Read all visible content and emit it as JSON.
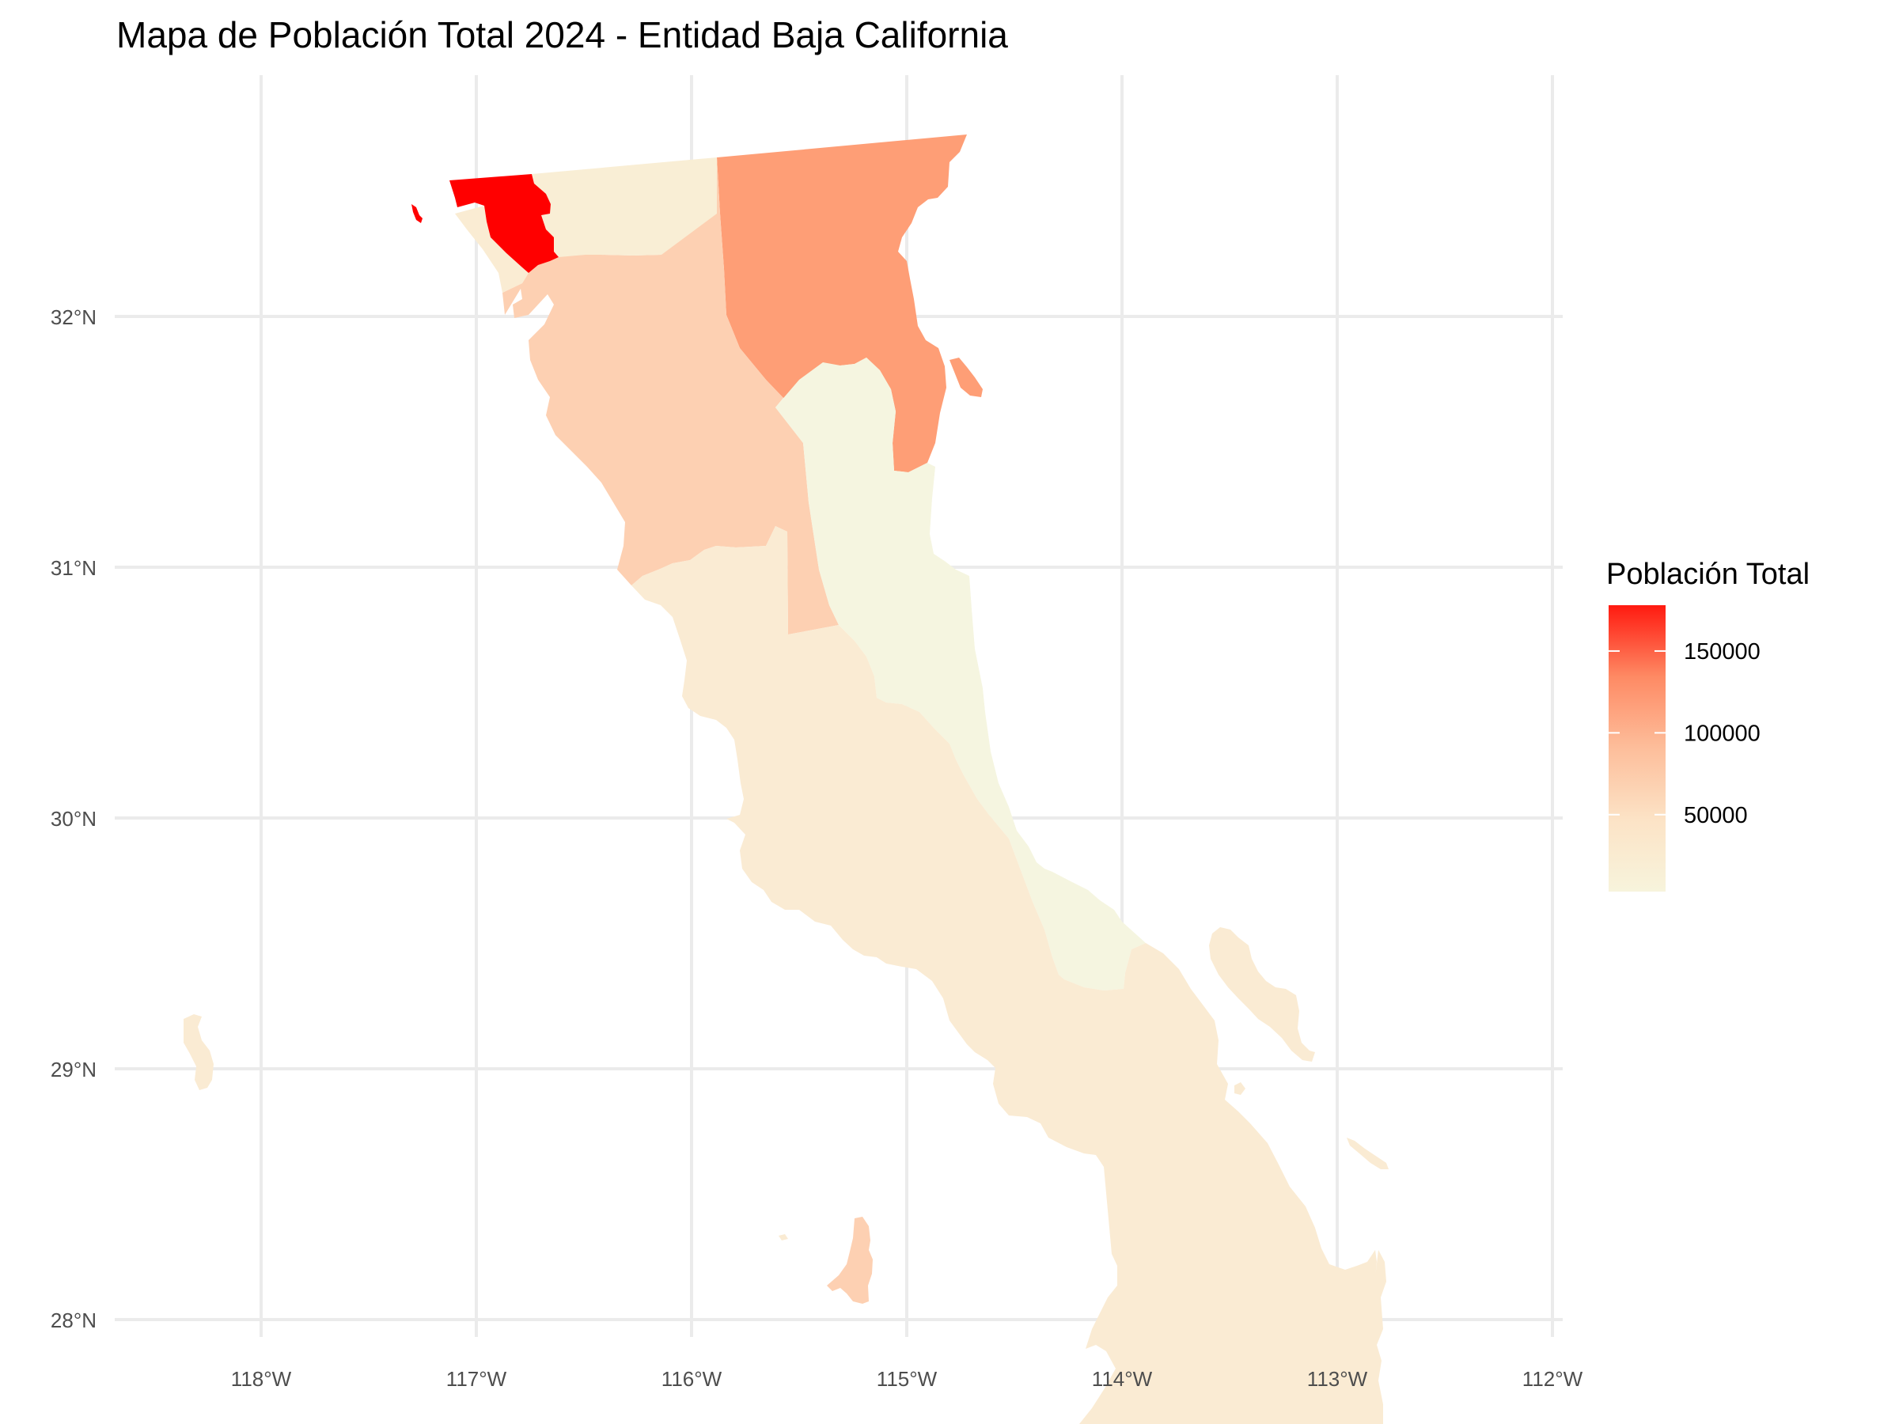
{
  "chart_data": {
    "type": "choropleth",
    "title": "Mapa de Población Total 2024 - Entidad Baja California",
    "legend_title": "Población Total",
    "legend_position": "right",
    "color_scale": {
      "low": "#f7f4dc",
      "mid": "#fdcdb0",
      "high": "#ff0000"
    },
    "value_range": [
      3000,
      178000
    ],
    "legend_breaks": [
      {
        "value": 150000,
        "label": "150000"
      },
      {
        "value": 100000,
        "label": "100000"
      },
      {
        "value": 50000,
        "label": "50000"
      }
    ],
    "x_ticks": [
      {
        "value": -118,
        "label": "118°W"
      },
      {
        "value": -117,
        "label": "117°W"
      },
      {
        "value": -116,
        "label": "116°W"
      },
      {
        "value": -115,
        "label": "115°W"
      },
      {
        "value": -114,
        "label": "114°W"
      },
      {
        "value": -113,
        "label": "113°W"
      },
      {
        "value": -112,
        "label": "112°W"
      }
    ],
    "y_ticks": [
      {
        "value": 32,
        "label": "32°N"
      },
      {
        "value": 31,
        "label": "31°N"
      },
      {
        "value": 30,
        "label": "30°N"
      },
      {
        "value": 29,
        "label": "29°N"
      },
      {
        "value": 28,
        "label": "28°N"
      }
    ],
    "xlim": [
      -118.6,
      -112
    ],
    "ylim": [
      27.8,
      33
    ],
    "grid": true,
    "regions": [
      {
        "id": "tijuana",
        "value": 178000,
        "color": "#ff0000"
      },
      {
        "id": "mexicali",
        "value": 95000,
        "color": "#fe9e76"
      },
      {
        "id": "ensenada",
        "value": 45000,
        "color": "#fdd0b2"
      },
      {
        "id": "tecate",
        "value": 12000,
        "color": "#f9eed5"
      },
      {
        "id": "playas-rosarito",
        "value": 10000,
        "color": "#faecd3"
      },
      {
        "id": "san-quintin",
        "value": 9000,
        "color": "#faebd3"
      },
      {
        "id": "san-felipe",
        "value": 3000,
        "color": "#f5f5e0"
      }
    ]
  }
}
